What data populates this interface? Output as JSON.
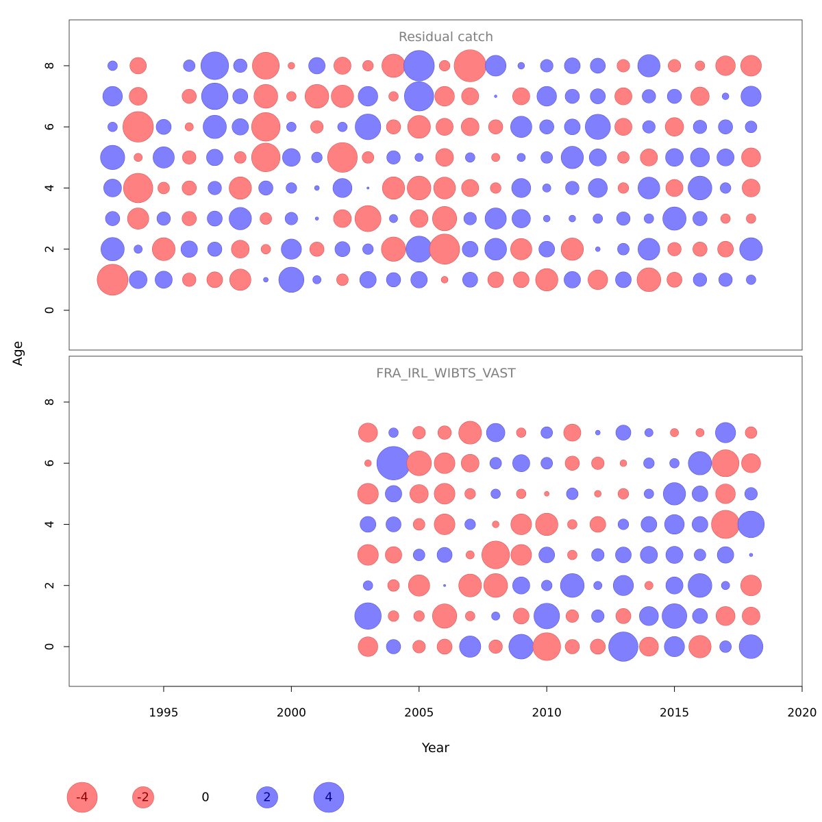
{
  "figure": {
    "xlabel": "Year",
    "ylabel": "Age"
  },
  "colors": {
    "negative_fill": "#ff8080",
    "negative_stroke": "#e05050",
    "positive_fill": "#8080ff",
    "positive_stroke": "#5050e0",
    "panel_title": "#808080"
  },
  "chart_data": [
    {
      "type": "scatter",
      "subtype": "bubble",
      "title": "Residual catch",
      "xlabel": "Year",
      "ylabel": "Age",
      "xlim": [
        1991.3,
        2020
      ],
      "ylim": [
        -1.3,
        9.5
      ],
      "x_ticks": [
        1995,
        2000,
        2005,
        2010,
        2015,
        2020
      ],
      "y_ticks": [
        0,
        2,
        4,
        6,
        8
      ],
      "show_x_axis": false,
      "years": [
        1993,
        1994,
        1995,
        1996,
        1997,
        1998,
        1999,
        2000,
        2001,
        2002,
        2003,
        2004,
        2005,
        2006,
        2007,
        2008,
        2009,
        2010,
        2011,
        2012,
        2013,
        2014,
        2015,
        2016,
        2017,
        2018
      ],
      "ages": [
        1,
        2,
        3,
        4,
        5,
        6,
        7,
        8
      ],
      "residuals": [
        [
          -4.2,
          1.4,
          1.3,
          -0.8,
          -1.1,
          -2.0,
          0.1,
          2.8,
          0.3,
          -0.6,
          1.2,
          0.9,
          1.2,
          -0.2,
          1.0,
          -1.1,
          -1.1,
          -2.2,
          1.2,
          -1.7,
          1.1,
          -2.5,
          -1.0,
          0.8,
          0.8,
          0.4
        ],
        [
          2.4,
          0.3,
          -2.3,
          1.2,
          0.9,
          -1.4,
          -0.4,
          1.8,
          -0.9,
          1.0,
          0.5,
          -2.6,
          3.0,
          -4.0,
          1.1,
          2.1,
          -2.0,
          1.1,
          -2.2,
          0.1,
          0.6,
          2.1,
          -0.8,
          -0.9,
          -1.1,
          2.3
        ],
        [
          0.9,
          -2.0,
          0.8,
          -0.9,
          1.0,
          2.2,
          -0.6,
          0.7,
          0.05,
          -1.4,
          -3.0,
          0.3,
          -1.4,
          -2.6,
          0.7,
          2.0,
          1.5,
          0.2,
          0.2,
          0.4,
          0.8,
          0.4,
          2.4,
          0.9,
          -0.4,
          -0.4
        ],
        [
          1.4,
          -3.8,
          -0.6,
          -0.9,
          0.8,
          -2.2,
          0.9,
          0.5,
          0.1,
          1.6,
          0.02,
          -2.2,
          -2.5,
          -2.1,
          -1.3,
          -0.5,
          1.6,
          0.3,
          0.8,
          1.6,
          -0.5,
          2.1,
          -1.3,
          2.5,
          0.5,
          -1.4
        ],
        [
          2.6,
          -0.3,
          2.0,
          -0.8,
          1.2,
          -0.6,
          -3.6,
          1.4,
          0.5,
          -3.9,
          -0.6,
          0.8,
          0.3,
          -1.4,
          0.4,
          -0.3,
          0.3,
          0.6,
          2.2,
          1.3,
          -0.6,
          -1.3,
          1.4,
          1.6,
          1.3,
          -1.6
        ],
        [
          0.4,
          -4.1,
          1.0,
          -0.3,
          2.4,
          1.2,
          -3.6,
          0.4,
          -0.7,
          0.4,
          2.9,
          -0.9,
          -2.3,
          -1.3,
          -1.4,
          -0.9,
          2.0,
          0.9,
          1.1,
          2.8,
          -1.3,
          0.7,
          -1.5,
          0.8,
          0.9,
          0.6
        ],
        [
          1.7,
          -1.4,
          0.0,
          -0.9,
          3.1,
          1.0,
          -2.5,
          -0.4,
          -2.5,
          -2.2,
          1.7,
          -0.4,
          3.8,
          -1.7,
          -1.3,
          0.03,
          -1.3,
          1.7,
          0.9,
          1.0,
          -1.3,
          0.8,
          0.9,
          -1.5,
          0.2,
          1.8
        ],
        [
          0.4,
          -1.2,
          0.0,
          0.6,
          3.4,
          0.8,
          -3.2,
          -0.2,
          1.2,
          -1.3,
          -0.5,
          -2.4,
          4.1,
          -0.5,
          -4.5,
          1.9,
          0.2,
          0.7,
          1.1,
          1.0,
          -0.7,
          2.2,
          -0.7,
          -0.4,
          -1.7,
          -1.9
        ]
      ]
    },
    {
      "type": "scatter",
      "subtype": "bubble",
      "title": "FRA_IRL_WIBTS_VAST",
      "xlabel": "Year",
      "ylabel": "Age",
      "xlim": [
        1991.3,
        2020
      ],
      "ylim": [
        -1.3,
        9.5
      ],
      "x_ticks": [
        1995,
        2000,
        2005,
        2010,
        2015,
        2020
      ],
      "y_ticks": [
        0,
        2,
        4,
        6,
        8
      ],
      "show_x_axis": true,
      "years": [
        2003,
        2004,
        2005,
        2006,
        2007,
        2008,
        2009,
        2010,
        2011,
        2012,
        2013,
        2014,
        2015,
        2016,
        2017,
        2018
      ],
      "ages": [
        0,
        1,
        2,
        3,
        4,
        5,
        6,
        7
      ],
      "residuals": [
        [
          -1.7,
          0.9,
          -0.7,
          -1.0,
          2.0,
          -0.8,
          2.7,
          -3.4,
          -0.9,
          -1.0,
          3.8,
          -1.6,
          1.8,
          -2.2,
          0.6,
          2.5
        ],
        [
          3.1,
          -0.5,
          -0.5,
          -2.6,
          -0.4,
          0.3,
          -1.1,
          2.9,
          -0.7,
          0.7,
          -1.0,
          1.6,
          2.7,
          1.0,
          -1.6,
          -1.4
        ],
        [
          0.4,
          -0.6,
          -2.0,
          0.02,
          -2.3,
          -2.5,
          1.3,
          0.5,
          2.5,
          0.3,
          1.8,
          -0.3,
          1.3,
          2.5,
          0.3,
          -1.9
        ],
        [
          -1.9,
          -1.2,
          0.6,
          1.0,
          -0.3,
          -3.4,
          -1.9,
          1.1,
          -0.4,
          0.7,
          1.1,
          1.3,
          1.3,
          0.6,
          1.2,
          0.05
        ],
        [
          1.1,
          1.0,
          -0.6,
          -1.9,
          0.5,
          -0.2,
          -1.9,
          -2.2,
          -0.4,
          -1.1,
          0.5,
          1.1,
          1.7,
          1.1,
          -3.5,
          3.1
        ],
        [
          -1.9,
          1.2,
          -1.5,
          -1.9,
          -0.5,
          0.4,
          -0.4,
          -0.1,
          0.6,
          -0.2,
          -0.5,
          0.4,
          2.2,
          1.1,
          -1.7,
          0.7
        ],
        [
          -0.2,
          4.9,
          -2.7,
          -1.9,
          -1.4,
          0.6,
          1.3,
          0.6,
          -0.9,
          -0.7,
          -0.2,
          0.5,
          0.4,
          2.4,
          -3.2,
          -1.6
        ],
        [
          -1.6,
          0.4,
          -0.7,
          -0.8,
          -2.3,
          1.5,
          -0.4,
          0.6,
          -1.3,
          0.1,
          1.0,
          0.3,
          -0.3,
          -0.3,
          1.8,
          -0.6
        ]
      ]
    }
  ],
  "legend": {
    "items": [
      {
        "value": -4,
        "label": "-4"
      },
      {
        "value": -2,
        "label": "-2"
      },
      {
        "value": 0,
        "label": "0"
      },
      {
        "value": 2,
        "label": "2"
      },
      {
        "value": 4,
        "label": "4"
      }
    ]
  }
}
